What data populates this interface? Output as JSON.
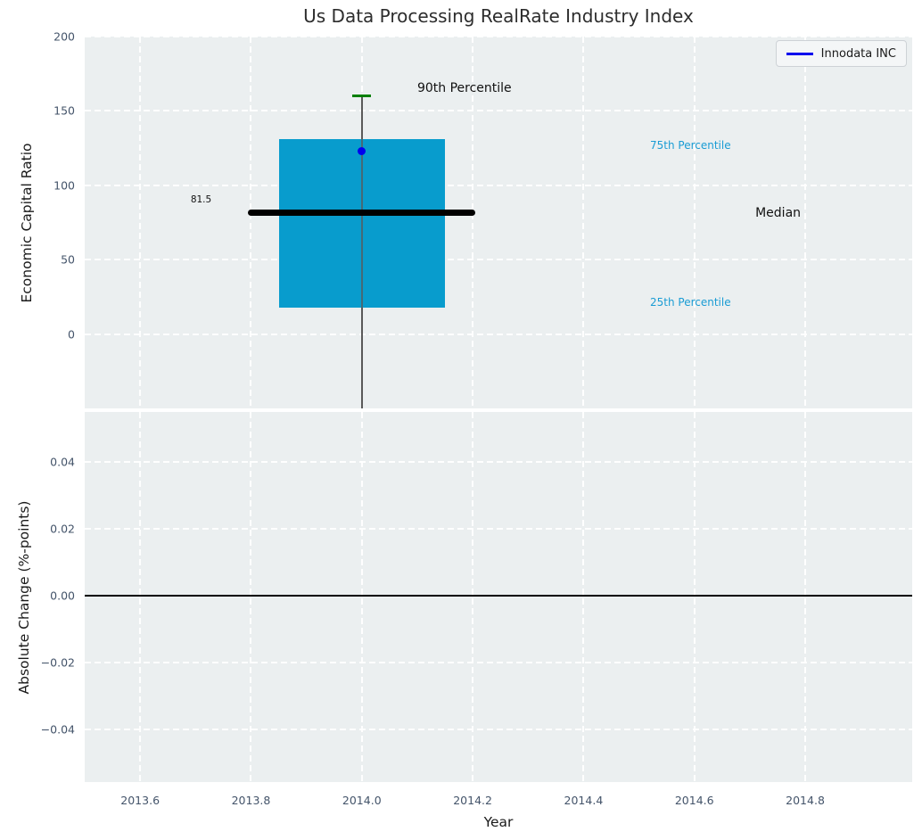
{
  "title": "Us Data Processing RealRate Industry Index",
  "legend": {
    "label": "Innodata INC",
    "position": "upper right",
    "line_color": "#0000ee"
  },
  "colors": {
    "figure_bg": "#ffffff",
    "plot_bg": "#ebeff0",
    "grid": "#ffffff",
    "box_fill": "#089ccd",
    "median_line": "#000000",
    "whisker": "#5a5a5a",
    "cap_90th": "#007f00",
    "point": "#0000ee",
    "zero_line": "#000000",
    "tick_label": "#44546a",
    "percentile_text": "#1a9cd4",
    "annotation_text": "#111111"
  },
  "chart_data": [
    {
      "type": "boxplot",
      "title": "Us Data Processing RealRate Industry Index",
      "ylabel": "Economic Capital Ratio",
      "ylim": [
        -50,
        200
      ],
      "yticks": [
        {
          "v": 0,
          "label": "0"
        },
        {
          "v": 50,
          "label": "50"
        },
        {
          "v": 100,
          "label": "100"
        },
        {
          "v": 150,
          "label": "150"
        },
        {
          "v": 200,
          "label": "200"
        }
      ],
      "xlim": [
        2013.5,
        2014.993
      ],
      "xgrid_values": [
        2013.6,
        2013.8,
        2014.0,
        2014.2,
        2014.4,
        2014.6,
        2014.8
      ],
      "grid": "white dashed, on",
      "legend_entries": [
        "Innodata INC"
      ],
      "box": {
        "x": 2014.0,
        "box_width": 0.3,
        "median_width": 0.41,
        "cap_width": 0.034,
        "p25": 17.5,
        "median": 81.5,
        "p75": 131,
        "p90": 160,
        "whisker_extends_below_axis": true
      },
      "marker": {
        "series": "Innodata INC",
        "x": 2014.0,
        "y": 123
      },
      "annotations": [
        {
          "text": "90th Percentile",
          "x": 2014.1,
          "y": 165,
          "color": "#111111",
          "size": 14,
          "anchor": "left"
        },
        {
          "text": "75th Percentile",
          "x": 2014.52,
          "y": 127,
          "color": "#1a9cd4",
          "size": 12,
          "anchor": "left"
        },
        {
          "text": "Median",
          "x": 2014.71,
          "y": 81.5,
          "color": "#111111",
          "size": 14,
          "anchor": "left"
        },
        {
          "text": "25th Percentile",
          "x": 2014.52,
          "y": 21.5,
          "color": "#1a9cd4",
          "size": 12,
          "anchor": "left"
        },
        {
          "text": "81.5",
          "x": 2013.71,
          "y": 90,
          "color": "#111111",
          "size": 10.5,
          "anchor": "center"
        }
      ]
    },
    {
      "type": "line",
      "ylabel": "Absolute Change (%-points)",
      "xlabel": "Year",
      "ylim": [
        -0.0557,
        0.0549
      ],
      "yticks": [
        {
          "v": 0.04,
          "label": "0.04"
        },
        {
          "v": 0.02,
          "label": "0.02"
        },
        {
          "v": 0.0,
          "label": "0.00"
        },
        {
          "v": -0.02,
          "label": "−0.02"
        },
        {
          "v": -0.04,
          "label": "−0.04"
        }
      ],
      "xlim": [
        2013.5,
        2014.993
      ],
      "xticks": [
        {
          "v": 2013.6,
          "label": "2013.6"
        },
        {
          "v": 2013.8,
          "label": "2013.8"
        },
        {
          "v": 2014.0,
          "label": "2014.0"
        },
        {
          "v": 2014.2,
          "label": "2014.2"
        },
        {
          "v": 2014.4,
          "label": "2014.4"
        },
        {
          "v": 2014.6,
          "label": "2014.6"
        },
        {
          "v": 2014.8,
          "label": "2014.8"
        }
      ],
      "grid": "white dashed, on",
      "zero_line": 0.0,
      "series": []
    }
  ]
}
